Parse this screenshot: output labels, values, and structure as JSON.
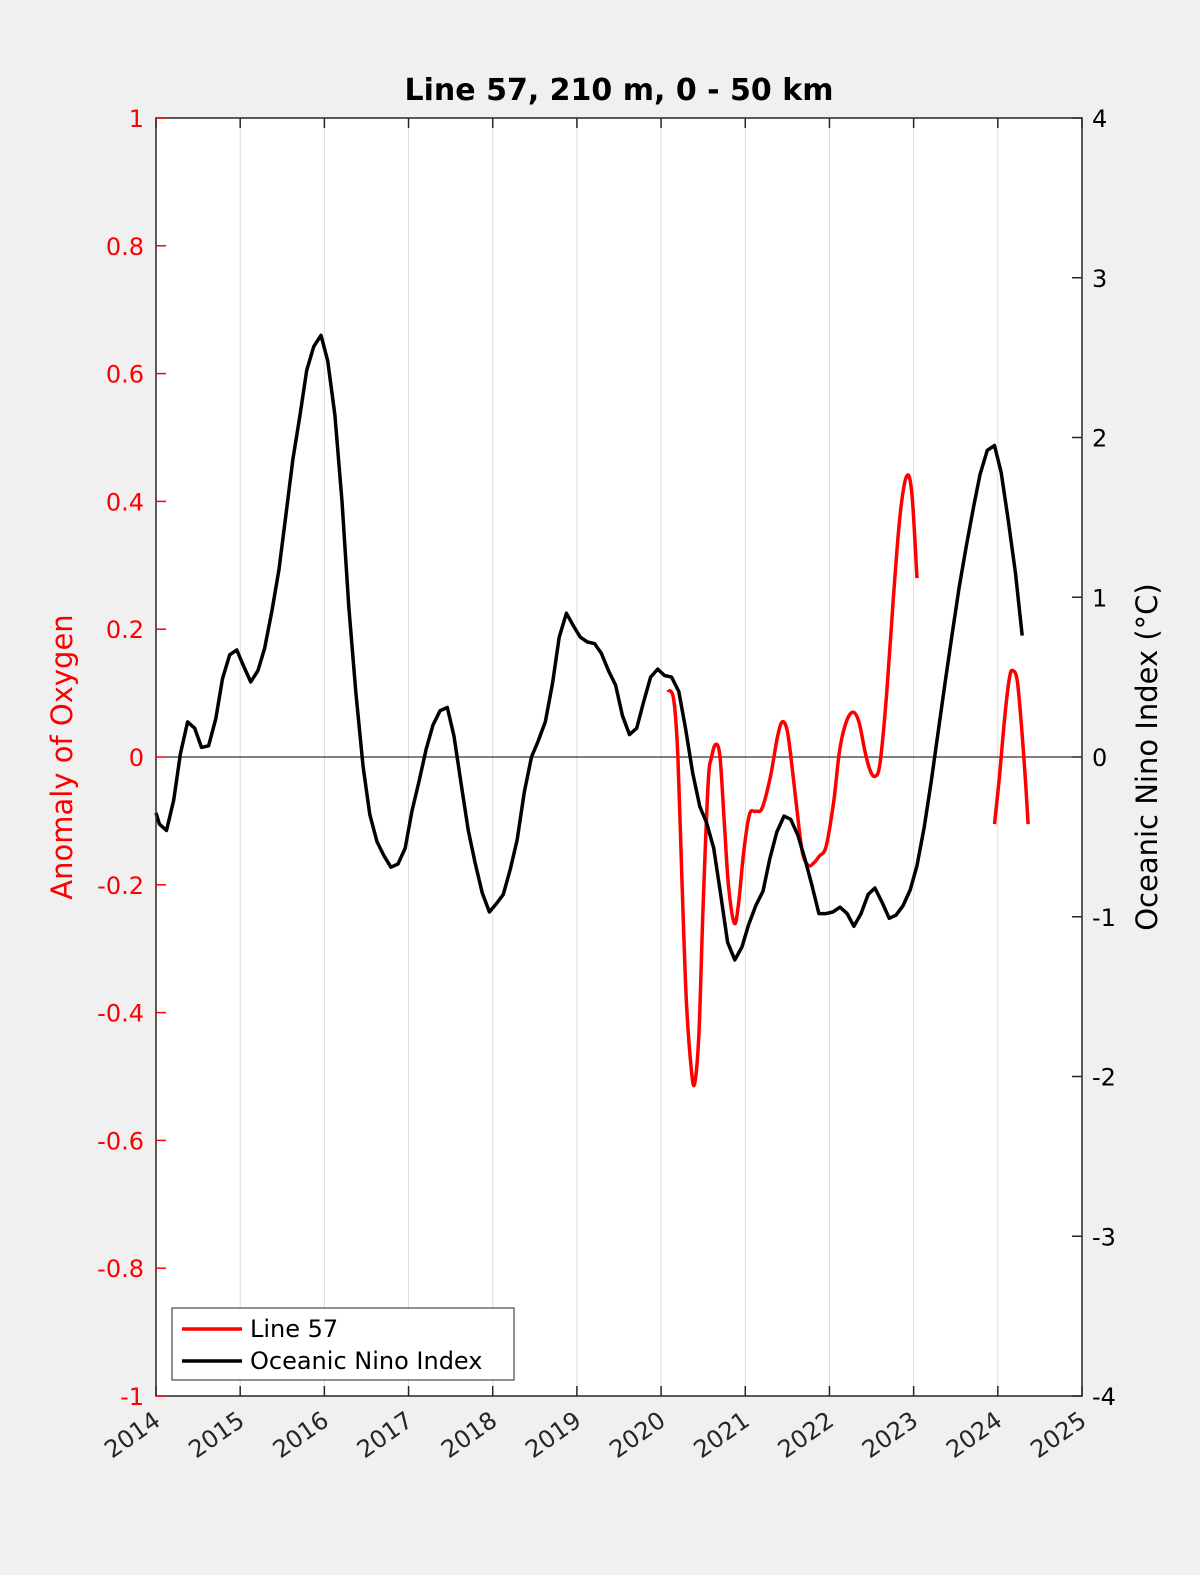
{
  "chart_data": {
    "type": "line",
    "title": "Line 57, 210 m, 0 - 50 km",
    "xlabel": "",
    "ylabel": "Anomaly of Oxygen",
    "y2label": "Oceanic Nino Index (°C)",
    "xlim": [
      2014,
      2025
    ],
    "ylim": [
      -1,
      1
    ],
    "y2lim": [
      -4,
      4
    ],
    "x_ticks": [
      "2014",
      "2015",
      "2016",
      "2017",
      "2018",
      "2019",
      "2020",
      "2021",
      "2022",
      "2023",
      "2024",
      "2025"
    ],
    "y_ticks": [
      "-1",
      "-0.8",
      "-0.6",
      "-0.4",
      "-0.2",
      "0",
      "0.2",
      "0.4",
      "0.6",
      "0.8",
      "1"
    ],
    "y2_ticks": [
      "-4",
      "-3",
      "-2",
      "-1",
      "0",
      "1",
      "2",
      "3",
      "4"
    ],
    "grid": "vertical",
    "legend_position": "bottom-left",
    "colors": {
      "line57": "#ff0000",
      "oni": "#000000",
      "left_axis": "#ff0000",
      "right_axis": "#000000"
    },
    "series": [
      {
        "name": "Line 57",
        "axis": "left",
        "color": "#ff0000",
        "segments": [
          [
            [
              2020.08,
              0.105
            ],
            [
              2020.15,
              0.09
            ],
            [
              2020.2,
              0.0
            ],
            [
              2020.25,
              -0.2
            ],
            [
              2020.3,
              -0.38
            ],
            [
              2020.36,
              -0.49
            ],
            [
              2020.4,
              -0.51
            ],
            [
              2020.45,
              -0.43
            ],
            [
              2020.5,
              -0.23
            ],
            [
              2020.56,
              -0.04
            ],
            [
              2020.6,
              0.0
            ],
            [
              2020.65,
              0.02
            ],
            [
              2020.7,
              0.0
            ],
            [
              2020.75,
              -0.1
            ],
            [
              2020.8,
              -0.2
            ],
            [
              2020.87,
              -0.26
            ],
            [
              2020.92,
              -0.23
            ],
            [
              2020.98,
              -0.15
            ],
            [
              2021.05,
              -0.09
            ],
            [
              2021.12,
              -0.085
            ],
            [
              2021.2,
              -0.08
            ],
            [
              2021.3,
              -0.03
            ],
            [
              2021.38,
              0.03
            ],
            [
              2021.44,
              0.055
            ],
            [
              2021.5,
              0.04
            ],
            [
              2021.56,
              -0.02
            ],
            [
              2021.62,
              -0.09
            ],
            [
              2021.68,
              -0.15
            ],
            [
              2021.75,
              -0.17
            ],
            [
              2021.82,
              -0.165
            ],
            [
              2021.88,
              -0.155
            ],
            [
              2021.96,
              -0.14
            ],
            [
              2022.05,
              -0.07
            ],
            [
              2022.12,
              0.01
            ],
            [
              2022.2,
              0.055
            ],
            [
              2022.28,
              0.07
            ],
            [
              2022.35,
              0.055
            ],
            [
              2022.42,
              0.01
            ],
            [
              2022.48,
              -0.02
            ],
            [
              2022.54,
              -0.03
            ],
            [
              2022.6,
              -0.01
            ],
            [
              2022.68,
              0.1
            ],
            [
              2022.76,
              0.25
            ],
            [
              2022.84,
              0.38
            ],
            [
              2022.92,
              0.44
            ],
            [
              2022.98,
              0.41
            ],
            [
              2023.04,
              0.28
            ]
          ],
          [
            [
              2023.96,
              -0.105
            ],
            [
              2024.02,
              -0.03
            ],
            [
              2024.08,
              0.06
            ],
            [
              2024.14,
              0.125
            ],
            [
              2024.18,
              0.135
            ],
            [
              2024.23,
              0.12
            ],
            [
              2024.28,
              0.05
            ],
            [
              2024.33,
              -0.04
            ],
            [
              2024.36,
              -0.105
            ]
          ]
        ]
      },
      {
        "name": "Oceanic Nino Index",
        "axis": "right",
        "color": "#000000",
        "points": [
          [
            2014.0,
            -0.35
          ],
          [
            2014.04,
            -0.42
          ],
          [
            2014.125,
            -0.46
          ],
          [
            2014.21,
            -0.27
          ],
          [
            2014.29,
            0.02
          ],
          [
            2014.375,
            0.22
          ],
          [
            2014.46,
            0.18
          ],
          [
            2014.54,
            0.06
          ],
          [
            2014.625,
            0.07
          ],
          [
            2014.71,
            0.24
          ],
          [
            2014.79,
            0.49
          ],
          [
            2014.875,
            0.64
          ],
          [
            2014.96,
            0.67
          ],
          [
            2015.04,
            0.57
          ],
          [
            2015.125,
            0.47
          ],
          [
            2015.21,
            0.54
          ],
          [
            2015.29,
            0.68
          ],
          [
            2015.375,
            0.91
          ],
          [
            2015.46,
            1.17
          ],
          [
            2015.54,
            1.5
          ],
          [
            2015.625,
            1.86
          ],
          [
            2015.71,
            2.14
          ],
          [
            2015.79,
            2.42
          ],
          [
            2015.875,
            2.57
          ],
          [
            2015.96,
            2.64
          ],
          [
            2016.04,
            2.48
          ],
          [
            2016.125,
            2.14
          ],
          [
            2016.21,
            1.6
          ],
          [
            2016.29,
            0.94
          ],
          [
            2016.375,
            0.4
          ],
          [
            2016.46,
            -0.06
          ],
          [
            2016.54,
            -0.36
          ],
          [
            2016.625,
            -0.53
          ],
          [
            2016.71,
            -0.62
          ],
          [
            2016.79,
            -0.69
          ],
          [
            2016.875,
            -0.67
          ],
          [
            2016.96,
            -0.57
          ],
          [
            2017.04,
            -0.34
          ],
          [
            2017.125,
            -0.15
          ],
          [
            2017.21,
            0.05
          ],
          [
            2017.29,
            0.2
          ],
          [
            2017.375,
            0.29
          ],
          [
            2017.46,
            0.31
          ],
          [
            2017.54,
            0.13
          ],
          [
            2017.625,
            -0.17
          ],
          [
            2017.71,
            -0.46
          ],
          [
            2017.79,
            -0.66
          ],
          [
            2017.875,
            -0.85
          ],
          [
            2017.96,
            -0.97
          ],
          [
            2018.04,
            -0.92
          ],
          [
            2018.125,
            -0.86
          ],
          [
            2018.21,
            -0.7
          ],
          [
            2018.29,
            -0.52
          ],
          [
            2018.375,
            -0.22
          ],
          [
            2018.46,
            0.0
          ],
          [
            2018.54,
            0.1
          ],
          [
            2018.625,
            0.22
          ],
          [
            2018.71,
            0.46
          ],
          [
            2018.79,
            0.75
          ],
          [
            2018.875,
            0.9
          ],
          [
            2018.96,
            0.82
          ],
          [
            2019.04,
            0.75
          ],
          [
            2019.125,
            0.72
          ],
          [
            2019.21,
            0.71
          ],
          [
            2019.29,
            0.65
          ],
          [
            2019.375,
            0.54
          ],
          [
            2019.46,
            0.45
          ],
          [
            2019.54,
            0.26
          ],
          [
            2019.625,
            0.14
          ],
          [
            2019.71,
            0.18
          ],
          [
            2019.79,
            0.34
          ],
          [
            2019.875,
            0.5
          ],
          [
            2019.96,
            0.55
          ],
          [
            2020.04,
            0.51
          ],
          [
            2020.125,
            0.5
          ],
          [
            2020.21,
            0.41
          ],
          [
            2020.29,
            0.18
          ],
          [
            2020.375,
            -0.1
          ],
          [
            2020.46,
            -0.31
          ],
          [
            2020.54,
            -0.41
          ],
          [
            2020.625,
            -0.57
          ],
          [
            2020.71,
            -0.87
          ],
          [
            2020.79,
            -1.16
          ],
          [
            2020.875,
            -1.27
          ],
          [
            2020.96,
            -1.19
          ],
          [
            2021.04,
            -1.05
          ],
          [
            2021.125,
            -0.93
          ],
          [
            2021.21,
            -0.84
          ],
          [
            2021.29,
            -0.64
          ],
          [
            2021.375,
            -0.47
          ],
          [
            2021.46,
            -0.37
          ],
          [
            2021.54,
            -0.39
          ],
          [
            2021.625,
            -0.49
          ],
          [
            2021.71,
            -0.64
          ],
          [
            2021.79,
            -0.8
          ],
          [
            2021.875,
            -0.98
          ],
          [
            2021.96,
            -0.98
          ],
          [
            2022.04,
            -0.97
          ],
          [
            2022.125,
            -0.94
          ],
          [
            2022.21,
            -0.98
          ],
          [
            2022.29,
            -1.06
          ],
          [
            2022.375,
            -0.98
          ],
          [
            2022.46,
            -0.86
          ],
          [
            2022.54,
            -0.82
          ],
          [
            2022.625,
            -0.91
          ],
          [
            2022.71,
            -1.01
          ],
          [
            2022.79,
            -0.99
          ],
          [
            2022.875,
            -0.93
          ],
          [
            2022.96,
            -0.83
          ],
          [
            2023.04,
            -0.68
          ],
          [
            2023.125,
            -0.44
          ],
          [
            2023.21,
            -0.15
          ],
          [
            2023.29,
            0.15
          ],
          [
            2023.375,
            0.47
          ],
          [
            2023.46,
            0.78
          ],
          [
            2023.54,
            1.06
          ],
          [
            2023.625,
            1.32
          ],
          [
            2023.71,
            1.56
          ],
          [
            2023.79,
            1.77
          ],
          [
            2023.875,
            1.92
          ],
          [
            2023.96,
            1.95
          ],
          [
            2024.04,
            1.78
          ],
          [
            2024.125,
            1.48
          ],
          [
            2024.21,
            1.15
          ],
          [
            2024.29,
            0.76
          ]
        ]
      }
    ],
    "legend": [
      "Line 57",
      "Oceanic Nino Index"
    ]
  }
}
